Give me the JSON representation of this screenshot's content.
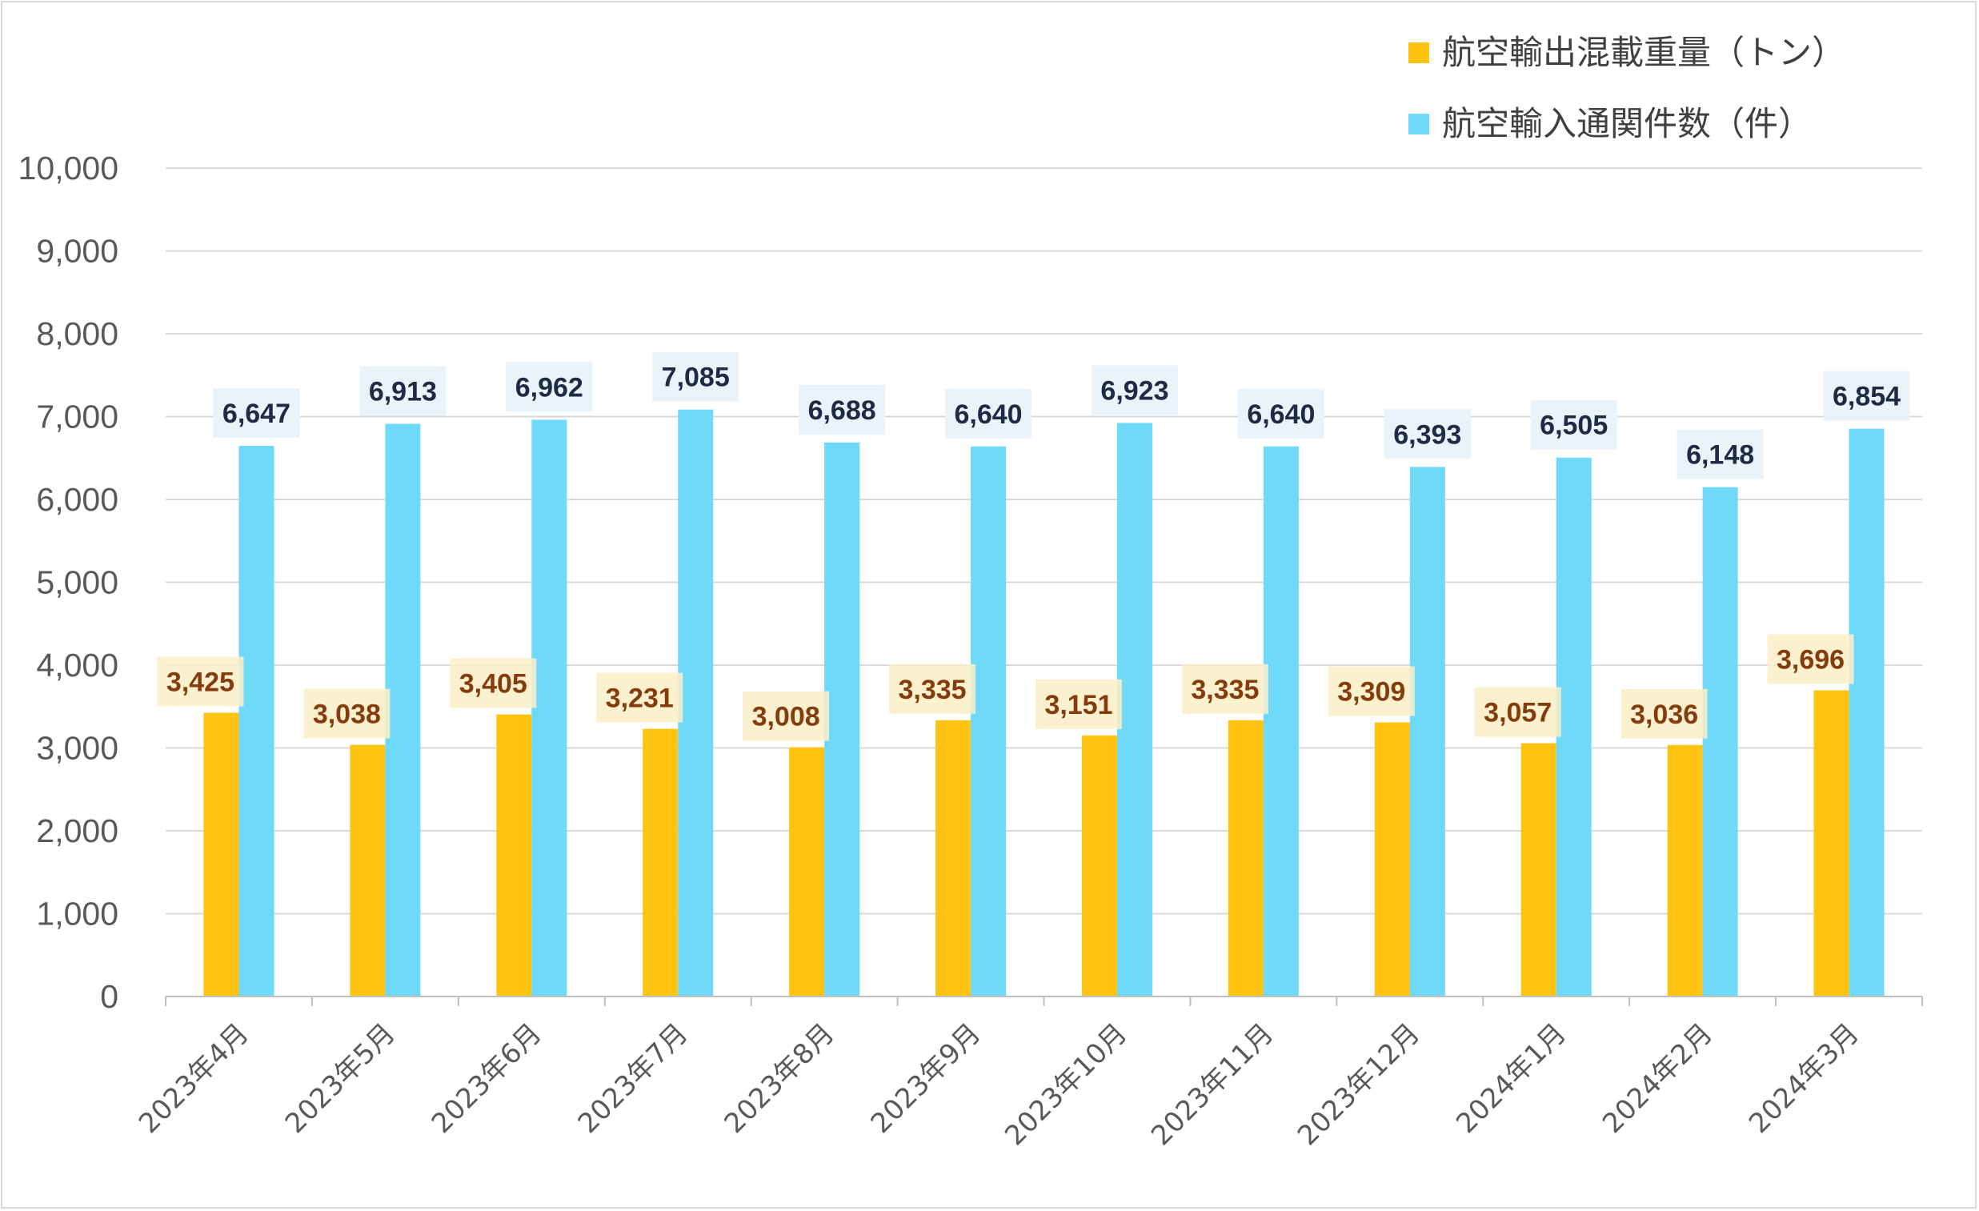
{
  "chart_data": {
    "type": "bar",
    "categories": [
      "2023年4月",
      "2023年5月",
      "2023年6月",
      "2023年7月",
      "2023年8月",
      "2023年9月",
      "2023年10月",
      "2023年11月",
      "2023年12月",
      "2024年1月",
      "2024年2月",
      "2024年3月"
    ],
    "series": [
      {
        "name": "航空輸出混載重量（トン）",
        "values": [
          3425,
          3038,
          3405,
          3231,
          3008,
          3335,
          3151,
          3335,
          3309,
          3057,
          3036,
          3696
        ],
        "labels": [
          "3,425",
          "3,038",
          "3,405",
          "3,231",
          "3,008",
          "3,335",
          "3,151",
          "3,335",
          "3,309",
          "3,057",
          "3,036",
          "3,696"
        ],
        "color": "#FFC312",
        "label_bg": "#FCEFC7",
        "label_color": "#843C0C"
      },
      {
        "name": "航空輸入通関件数（件）",
        "values": [
          6647,
          6913,
          6962,
          7085,
          6688,
          6640,
          6923,
          6640,
          6393,
          6505,
          6148,
          6854
        ],
        "labels": [
          "6,647",
          "6,913",
          "6,962",
          "7,085",
          "6,688",
          "6,640",
          "6,923",
          "6,640",
          "6,393",
          "6,505",
          "6,148",
          "6,854"
        ],
        "color": "#6FD9FA",
        "label_bg": "#EAF2FA",
        "label_color": "#1F2A44"
      }
    ],
    "y_ticks": [
      "0",
      "1,000",
      "2,000",
      "3,000",
      "4,000",
      "5,000",
      "6,000",
      "7,000",
      "8,000",
      "9,000",
      "10,000"
    ],
    "ylim": [
      0,
      10000
    ],
    "title": "",
    "xlabel": "",
    "ylabel": "",
    "grid": true,
    "legend_position": "top-right",
    "gridline_color": "#d9d9d9",
    "axis_text_color": "#595959"
  }
}
